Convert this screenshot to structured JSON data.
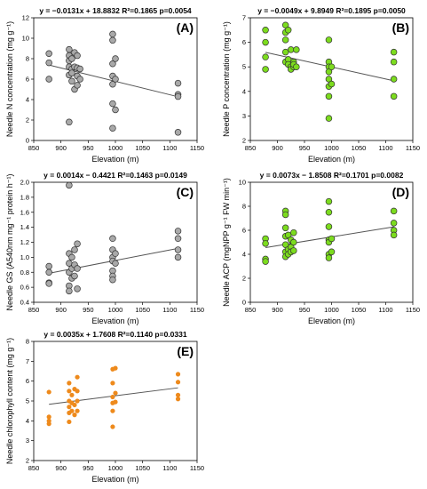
{
  "chart_data": [
    {
      "type": "scatter",
      "label": "(A)",
      "equation": "y = −0.0131x + 18.8832 R²=0.1865 p=0.0054",
      "xlabel": "Elevation (m)",
      "ylabel": "Needle N concentration (mg g⁻¹)",
      "xlim": [
        850,
        1150
      ],
      "ylim": [
        0,
        12
      ],
      "xticks": [
        850,
        900,
        950,
        1000,
        1050,
        1100,
        1150
      ],
      "yticks": [
        0,
        2,
        4,
        6,
        8,
        10,
        12
      ],
      "marker_color": "#a9a9a9",
      "trend": {
        "slope": -0.0131,
        "intercept": 18.8832,
        "x_range": [
          878,
          1115
        ]
      },
      "points": [
        [
          878,
          8.5
        ],
        [
          878,
          7.6
        ],
        [
          878,
          6.0
        ],
        [
          915,
          8.9
        ],
        [
          915,
          8.3
        ],
        [
          915,
          7.8
        ],
        [
          915,
          7.2
        ],
        [
          915,
          6.4
        ],
        [
          915,
          1.8
        ],
        [
          920,
          8.0
        ],
        [
          920,
          7.0
        ],
        [
          920,
          6.6
        ],
        [
          920,
          5.8
        ],
        [
          925,
          8.6
        ],
        [
          925,
          7.2
        ],
        [
          925,
          5.0
        ],
        [
          930,
          8.3
        ],
        [
          930,
          7.1
        ],
        [
          930,
          6.3
        ],
        [
          930,
          5.4
        ],
        [
          935,
          7.0
        ],
        [
          935,
          6.0
        ],
        [
          995,
          10.4
        ],
        [
          995,
          9.8
        ],
        [
          995,
          7.5
        ],
        [
          995,
          6.3
        ],
        [
          995,
          5.5
        ],
        [
          995,
          3.6
        ],
        [
          995,
          1.2
        ],
        [
          1000,
          8.0
        ],
        [
          1000,
          6.0
        ],
        [
          1000,
          3.0
        ],
        [
          1115,
          5.6
        ],
        [
          1115,
          4.5
        ],
        [
          1115,
          4.3
        ],
        [
          1115,
          0.8
        ]
      ]
    },
    {
      "type": "scatter",
      "label": "(B)",
      "equation": "y = −0.0049x + 9.8949 R²=0.1895 p=0.0050",
      "xlabel": "Elevation (m)",
      "ylabel": "Needle P concentration (mg g⁻¹)",
      "xlim": [
        850,
        1150
      ],
      "ylim": [
        2,
        7
      ],
      "xticks": [
        850,
        900,
        950,
        1000,
        1050,
        1100,
        1150
      ],
      "yticks": [
        2,
        3,
        4,
        5,
        6,
        7
      ],
      "marker_color": "#7cdc1e",
      "trend": {
        "slope": -0.0049,
        "intercept": 9.8949,
        "x_range": [
          878,
          1115
        ]
      },
      "points": [
        [
          878,
          6.5
        ],
        [
          878,
          6.0
        ],
        [
          878,
          5.4
        ],
        [
          878,
          4.9
        ],
        [
          915,
          6.7
        ],
        [
          915,
          6.4
        ],
        [
          915,
          6.1
        ],
        [
          915,
          5.6
        ],
        [
          915,
          5.2
        ],
        [
          920,
          6.5
        ],
        [
          920,
          5.3
        ],
        [
          920,
          5.1
        ],
        [
          925,
          5.7
        ],
        [
          925,
          5.0
        ],
        [
          925,
          4.9
        ],
        [
          930,
          5.2
        ],
        [
          930,
          5.0
        ],
        [
          930,
          5.1
        ],
        [
          935,
          5.7
        ],
        [
          935,
          5.0
        ],
        [
          995,
          6.1
        ],
        [
          995,
          5.2
        ],
        [
          995,
          5.0
        ],
        [
          995,
          4.8
        ],
        [
          995,
          4.5
        ],
        [
          995,
          4.2
        ],
        [
          995,
          3.8
        ],
        [
          995,
          2.9
        ],
        [
          1000,
          5.0
        ],
        [
          1000,
          4.3
        ],
        [
          1115,
          5.6
        ],
        [
          1115,
          5.2
        ],
        [
          1115,
          4.5
        ],
        [
          1115,
          3.8
        ]
      ]
    },
    {
      "type": "scatter",
      "label": "(C)",
      "equation": "y = 0.0014x − 0.4421 R²=0.1463 p=0.0149",
      "xlabel": "Elevation (m)",
      "ylabel": "Needle GS (A540nm mg⁻¹ protein h⁻¹)",
      "xlim": [
        850,
        1150
      ],
      "ylim": [
        0.4,
        2.0
      ],
      "xticks": [
        850,
        900,
        950,
        1000,
        1050,
        1100,
        1150
      ],
      "yticks": [
        0.4,
        0.6,
        0.8,
        1.0,
        1.2,
        1.4,
        1.6,
        1.8,
        2.0
      ],
      "marker_color": "#a9a9a9",
      "trend": {
        "slope": 0.0014,
        "intercept": -0.4421,
        "x_range": [
          878,
          1115
        ]
      },
      "points": [
        [
          878,
          0.88
        ],
        [
          878,
          0.8
        ],
        [
          878,
          0.66
        ],
        [
          878,
          0.65
        ],
        [
          915,
          1.96
        ],
        [
          915,
          1.05
        ],
        [
          915,
          0.92
        ],
        [
          915,
          0.8
        ],
        [
          915,
          0.62
        ],
        [
          915,
          0.55
        ],
        [
          920,
          1.0
        ],
        [
          920,
          0.85
        ],
        [
          920,
          0.72
        ],
        [
          925,
          1.1
        ],
        [
          925,
          0.9
        ],
        [
          925,
          0.75
        ],
        [
          930,
          1.18
        ],
        [
          930,
          0.85
        ],
        [
          930,
          0.58
        ],
        [
          995,
          1.25
        ],
        [
          995,
          1.1
        ],
        [
          995,
          1.0
        ],
        [
          995,
          0.95
        ],
        [
          995,
          0.82
        ],
        [
          995,
          0.75
        ],
        [
          995,
          0.7
        ],
        [
          1000,
          1.05
        ],
        [
          1000,
          0.92
        ],
        [
          1115,
          1.35
        ],
        [
          1115,
          1.25
        ],
        [
          1115,
          1.1
        ],
        [
          1115,
          1.0
        ]
      ]
    },
    {
      "type": "scatter",
      "label": "(D)",
      "equation": "y = 0.0073x − 1.8508 R²=0.1701 p=0.0082",
      "xlabel": "Elevation (m)",
      "ylabel": "Needle ACP (mgNPP g⁻¹ FW min⁻¹)",
      "xlim": [
        850,
        1150
      ],
      "ylim": [
        0,
        10
      ],
      "xticks": [
        850,
        900,
        950,
        1000,
        1050,
        1100,
        1150
      ],
      "yticks": [
        0,
        2,
        4,
        6,
        8,
        10
      ],
      "marker_color": "#7cdc1e",
      "trend": {
        "slope": 0.0073,
        "intercept": -1.8508,
        "x_range": [
          878,
          1115
        ]
      },
      "points": [
        [
          878,
          5.3
        ],
        [
          878,
          4.9
        ],
        [
          878,
          3.6
        ],
        [
          878,
          3.4
        ],
        [
          915,
          7.6
        ],
        [
          915,
          7.3
        ],
        [
          915,
          6.2
        ],
        [
          915,
          5.5
        ],
        [
          915,
          4.8
        ],
        [
          915,
          4.2
        ],
        [
          915,
          3.8
        ],
        [
          920,
          5.6
        ],
        [
          920,
          4.4
        ],
        [
          920,
          4.0
        ],
        [
          925,
          5.2
        ],
        [
          925,
          4.6
        ],
        [
          925,
          4.2
        ],
        [
          930,
          5.8
        ],
        [
          930,
          5.0
        ],
        [
          930,
          4.3
        ],
        [
          995,
          8.4
        ],
        [
          995,
          7.5
        ],
        [
          995,
          6.3
        ],
        [
          995,
          5.2
        ],
        [
          995,
          5.0
        ],
        [
          995,
          4.0
        ],
        [
          995,
          3.7
        ],
        [
          1000,
          5.3
        ],
        [
          1000,
          4.2
        ],
        [
          1115,
          7.6
        ],
        [
          1115,
          6.6
        ],
        [
          1115,
          6.0
        ],
        [
          1115,
          5.6
        ]
      ]
    },
    {
      "type": "scatter",
      "label": "(E)",
      "equation": "y = 0.0035x + 1.7608 R²=0.1140 p=0.0331",
      "xlabel": "Elevation (m)",
      "ylabel": "Needle chlorophyll content (mg g⁻¹)",
      "xlim": [
        850,
        1150
      ],
      "ylim": [
        2,
        8
      ],
      "xticks": [
        850,
        900,
        950,
        1000,
        1050,
        1100,
        1150
      ],
      "yticks": [
        2,
        3,
        4,
        5,
        6,
        7,
        8
      ],
      "marker_color": "#ee8a1c",
      "trend": {
        "slope": 0.0035,
        "intercept": 1.7608,
        "x_range": [
          878,
          1115
        ]
      },
      "points": [
        [
          878,
          5.45
        ],
        [
          878,
          4.2
        ],
        [
          878,
          4.0
        ],
        [
          878,
          3.85
        ],
        [
          915,
          5.9
        ],
        [
          915,
          5.5
        ],
        [
          915,
          5.0
        ],
        [
          915,
          4.7
        ],
        [
          915,
          4.4
        ],
        [
          915,
          3.95
        ],
        [
          920,
          5.3
        ],
        [
          920,
          4.9
        ],
        [
          920,
          4.5
        ],
        [
          925,
          5.6
        ],
        [
          925,
          4.8
        ],
        [
          925,
          4.3
        ],
        [
          930,
          6.2
        ],
        [
          930,
          5.5
        ],
        [
          930,
          5.0
        ],
        [
          930,
          4.5
        ],
        [
          995,
          6.6
        ],
        [
          995,
          5.9
        ],
        [
          995,
          5.2
        ],
        [
          995,
          4.9
        ],
        [
          995,
          4.5
        ],
        [
          995,
          3.7
        ],
        [
          1000,
          6.65
        ],
        [
          1000,
          5.4
        ],
        [
          1000,
          4.95
        ],
        [
          1115,
          6.35
        ],
        [
          1115,
          5.95
        ],
        [
          1115,
          5.3
        ],
        [
          1115,
          5.1
        ]
      ]
    }
  ]
}
